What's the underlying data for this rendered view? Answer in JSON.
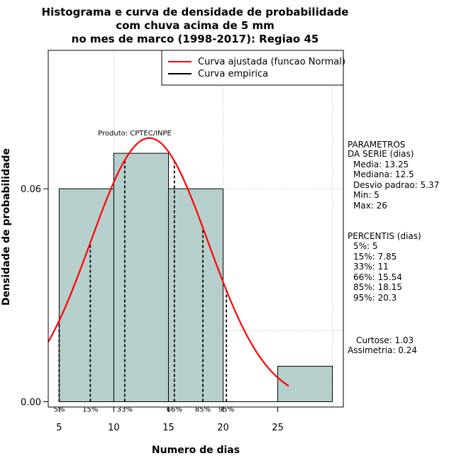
{
  "chart_data": {
    "type": "histogram",
    "title_lines": [
      "Histograma e curva de densidade de probabilidade",
      "com chuva acima de 5 mm",
      "no mes de marco (1998-2017): Regiao 45"
    ],
    "xlabel": "Numero de dias",
    "ylabel": "Densidade de probabilidade",
    "xlim": [
      4,
      31
    ],
    "ylim": [
      -0.0015,
      0.099
    ],
    "x_ticks": [
      5,
      10,
      15,
      20,
      25
    ],
    "y_ticks": [
      0.0,
      0.06
    ],
    "y_tick_labels": [
      "0.00",
      "0.06"
    ],
    "grid_x": [
      10,
      20,
      30
    ],
    "grid_y": [
      0.02,
      0.06,
      0.1
    ],
    "bins": [
      {
        "from": 5,
        "to": 10,
        "density": 0.06
      },
      {
        "from": 10,
        "to": 15,
        "density": 0.07
      },
      {
        "from": 15,
        "to": 20,
        "density": 0.06
      },
      {
        "from": 20,
        "to": 25,
        "density": 0.0
      },
      {
        "from": 25,
        "to": 30,
        "density": 0.01
      }
    ],
    "fitted_curve": {
      "name": "Curva ajustada (funcao Normal)",
      "mean": 13.25,
      "sd": 5.37,
      "x_from": 4,
      "x_to": 26,
      "color": "#ff0000"
    },
    "empirical_curve": {
      "name": "Curva empirica",
      "color": "#000000"
    },
    "percentiles": [
      {
        "label": "5%",
        "value": 5
      },
      {
        "label": "15%",
        "value": 7.85
      },
      {
        "label": "33%",
        "value": 11
      },
      {
        "label": "66%",
        "value": 15.54
      },
      {
        "label": "85%",
        "value": 18.15
      },
      {
        "label": "95%",
        "value": 20.3
      }
    ],
    "annotation": "Produto: CPTEC/INPE",
    "legend_placement": "top-right",
    "bar_color": "#b6cfcc",
    "parametros": {
      "heading": [
        "PARAMETROS",
        "DA SERIE (dias)"
      ],
      "lines": [
        "Media: 13.25",
        "Mediana: 12.5",
        "Desvio padrao: 5.37",
        "Min: 5",
        "Max: 26"
      ]
    },
    "percentis_box": {
      "heading": "PERCENTIS (dias)",
      "lines": [
        "5%: 5",
        "15%: 7.85",
        "33%: 11",
        "66%: 15.54",
        "85%: 18.15",
        "95%: 20.3"
      ]
    },
    "stats": [
      "Curtose: 1.03",
      "Assimetria: 0.24"
    ]
  }
}
